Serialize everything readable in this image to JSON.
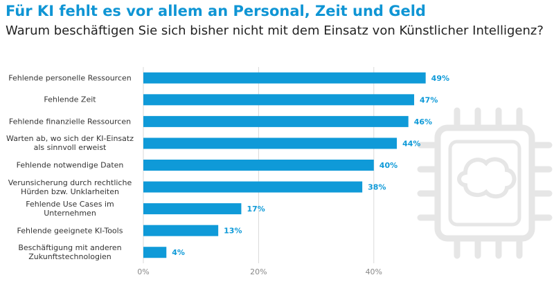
{
  "chart_data": {
    "type": "bar",
    "orientation": "horizontal",
    "title": "Für KI fehlt es vor allem an Personal, Zeit und Geld",
    "subtitle": "Warum beschäftigen Sie sich bisher nicht mit dem Einsatz von Künstlicher Intelligenz?",
    "categories": [
      "Fehlende personelle Ressourcen",
      "Fehlende Zeit",
      "Fehlende finanzielle Ressourcen",
      "Warten ab, wo sich der KI-Einsatz\nals sinnvoll erweist",
      "Fehlende notwendige Daten",
      "Verunsicherung durch rechtliche\nHürden bzw. Unklarheiten",
      "Fehlende Use Cases im\nUnternehmen",
      "Fehlende geeignete KI-Tools",
      "Beschäftigung mit anderen\nZukunftstechnologien"
    ],
    "values": [
      49,
      47,
      46,
      44,
      40,
      38,
      17,
      13,
      4
    ],
    "value_labels": [
      "49%",
      "47%",
      "46%",
      "44%",
      "40%",
      "38%",
      "17%",
      "13%",
      "4%"
    ],
    "color": "#0f9ad8",
    "xlim": [
      0,
      50
    ],
    "xticks": [
      {
        "value": 0,
        "label": "0%"
      },
      {
        "value": 20,
        "label": "20%"
      },
      {
        "value": 40,
        "label": "40%"
      }
    ],
    "grid": true
  }
}
